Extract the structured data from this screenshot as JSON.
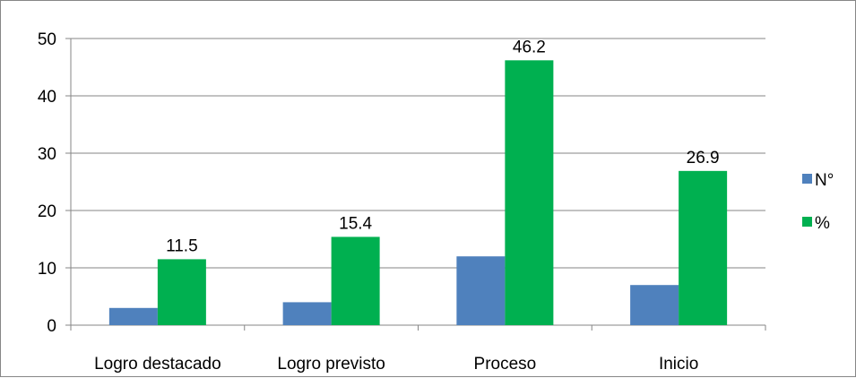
{
  "chart_data": {
    "type": "bar",
    "categories": [
      "Logro destacado",
      "Logro previsto",
      "Proceso",
      "Inicio"
    ],
    "series": [
      {
        "name": "N°",
        "values": [
          3,
          4,
          12,
          7
        ],
        "color": "#4f81bd",
        "show_labels": false
      },
      {
        "name": "%",
        "values": [
          11.5,
          15.4,
          46.2,
          26.9
        ],
        "color": "#00b050",
        "show_labels": true
      }
    ],
    "ylim": [
      0,
      50
    ],
    "yticks": [
      0,
      10,
      20,
      30,
      40,
      50
    ],
    "grid": true,
    "legend_position": "right",
    "title": "",
    "xlabel": "",
    "ylabel": ""
  }
}
